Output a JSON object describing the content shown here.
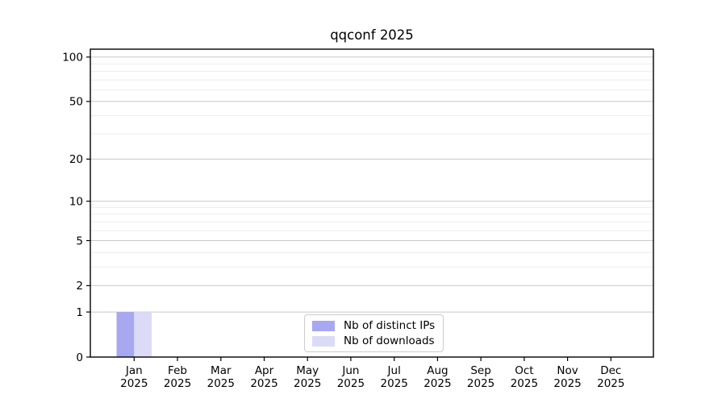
{
  "chart_data": {
    "type": "bar",
    "title": "qqconf 2025",
    "categories": [
      "Jan 2025",
      "Feb 2025",
      "Mar 2025",
      "Apr 2025",
      "May 2025",
      "Jun 2025",
      "Jul 2025",
      "Aug 2025",
      "Sep 2025",
      "Oct 2025",
      "Nov 2025",
      "Dec 2025"
    ],
    "series": [
      {
        "name": "Nb of distinct IPs",
        "color": "#a7a7f2",
        "values": [
          1,
          0,
          0,
          0,
          0,
          0,
          0,
          0,
          0,
          0,
          0,
          0
        ]
      },
      {
        "name": "Nb of downloads",
        "color": "#dbdbf8",
        "values": [
          1,
          0,
          0,
          0,
          0,
          0,
          0,
          0,
          0,
          0,
          0,
          0
        ]
      }
    ],
    "xlabel": "",
    "ylabel": "",
    "yscale": "log1p",
    "ylim": [
      0,
      113
    ],
    "y_major_ticks": [
      0,
      1,
      2,
      5,
      10,
      20,
      50,
      100
    ],
    "y_minor_gridlines": [
      3,
      4,
      6,
      7,
      8,
      9,
      30,
      40,
      60,
      70,
      80,
      90
    ],
    "grid": "horizontal",
    "legend_position": "lower center inside plot",
    "colors": {
      "axis": "#000000",
      "major_grid": "#c8c8c8",
      "minor_grid": "#ebebeb",
      "background": "#ffffff",
      "legend_border": "#cccccc"
    }
  }
}
